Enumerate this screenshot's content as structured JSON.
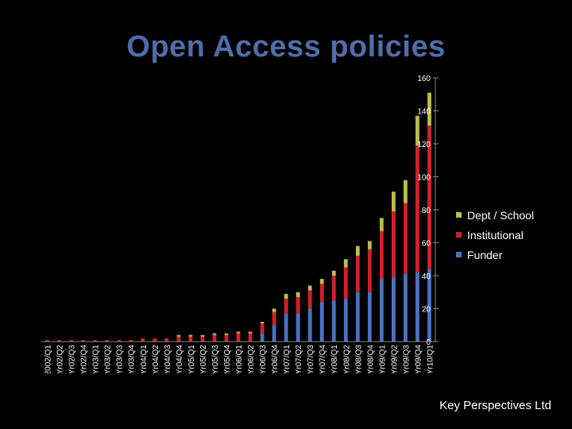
{
  "title": "Open Access policies",
  "footer": "Key Perspectives Ltd",
  "colors": {
    "Funder": "#4a72c0",
    "Institutional": "#d0212b",
    "Dept / School": "#b9bd4e"
  },
  "chart_data": {
    "type": "bar",
    "stacked": true,
    "title": "Open Access policies",
    "xlabel": "",
    "ylabel": "",
    "ylim": [
      0,
      160
    ],
    "yticks": [
      0,
      20,
      40,
      60,
      80,
      100,
      120,
      140,
      160
    ],
    "grid": false,
    "legend_position": "right",
    "categories": [
      "Y2002/Q1",
      "Yr02/Q2",
      "Yr02/Q3",
      "Yr02/Q4",
      "Yr03/Q1",
      "Yr03/Q2",
      "Yr03/Q3",
      "Yr03/Q4",
      "Yr04/Q1",
      "Yr04/Q2",
      "Yr04/Q3",
      "Yr04/Q4",
      "Yr05/Q1",
      "Yr05/Q2",
      "Yr05/Q3",
      "Yr05/Q4",
      "Yr06/Q1",
      "Yr06/Q2",
      "Yr06/Q3",
      "Yr06/Q4",
      "Yr07/Q1",
      "Yr07/Q2",
      "Yr07/Q3",
      "Yr07/Q4",
      "Yr08/Q1",
      "Yr08/Q2",
      "Yr08/Q3",
      "Yr08/Q4",
      "Yr09/Q1",
      "Yr09/Q2",
      "Yr09/Q3",
      "Yr09/Q4",
      "Yr10/Q1"
    ],
    "series": [
      {
        "name": "Funder",
        "values": [
          0,
          0,
          0,
          0,
          0,
          0,
          0,
          0,
          0,
          0,
          0,
          0,
          0,
          0,
          0,
          0,
          0,
          0,
          5,
          10,
          17,
          17,
          20,
          24,
          25,
          26,
          30,
          30,
          38,
          39,
          41,
          42,
          44
        ]
      },
      {
        "name": "Institutional",
        "values": [
          1,
          1,
          1,
          1,
          1,
          1,
          1,
          1,
          2,
          2,
          2,
          3,
          3,
          3,
          4,
          4,
          5,
          5,
          6,
          8,
          9,
          10,
          11,
          11,
          15,
          19,
          22,
          26,
          29,
          40,
          43,
          77,
          87
        ]
      },
      {
        "name": "Dept / School",
        "values": [
          0,
          0,
          0,
          0,
          0,
          0,
          0,
          0,
          0,
          0,
          0,
          1,
          1,
          1,
          1,
          1,
          1,
          1,
          1,
          2,
          3,
          3,
          3,
          3,
          3,
          5,
          6,
          5,
          8,
          12,
          14,
          18,
          20
        ]
      }
    ]
  }
}
